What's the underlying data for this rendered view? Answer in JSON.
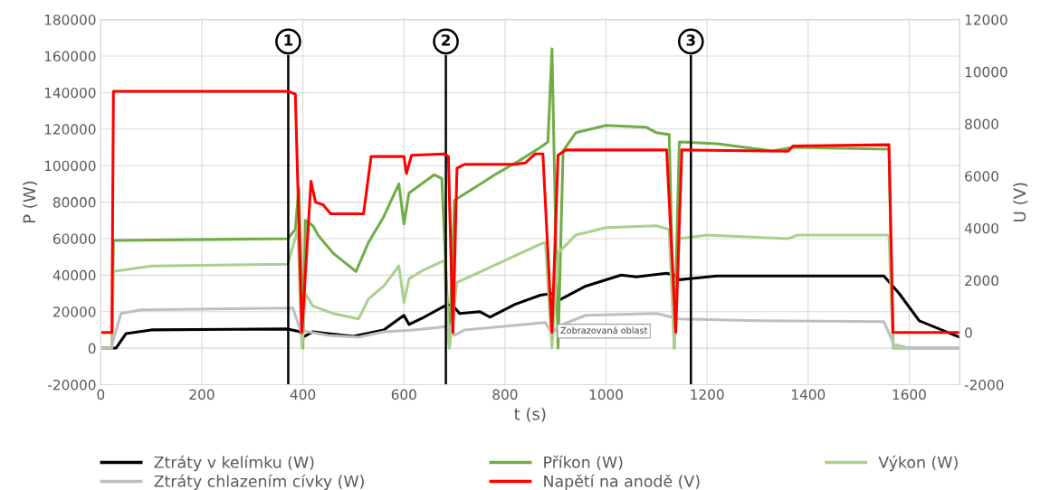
{
  "chart_data": {
    "type": "line",
    "xlabel": "t (s)",
    "ylabel": "P (W)",
    "y2label": "U (V)",
    "xlim": [
      0,
      1700
    ],
    "xticks": [
      0,
      200,
      400,
      600,
      800,
      1000,
      1200,
      1400,
      1600
    ],
    "ylim": [
      -20000,
      180000
    ],
    "yticks": [
      -20000,
      0,
      20000,
      40000,
      60000,
      80000,
      100000,
      120000,
      140000,
      160000,
      180000
    ],
    "y2lim": [
      -2000,
      12000
    ],
    "y2ticks": [
      -2000,
      0,
      2000,
      4000,
      6000,
      8000,
      10000,
      12000
    ],
    "grid": true,
    "legend": "bottom",
    "marker": "none",
    "line_style": "solid",
    "series": [
      {
        "name": "Ztráty v kelímku (W)",
        "color": "#000000",
        "x": [
          0,
          30,
          50,
          100,
          370,
          395,
          400,
          420,
          450,
          500,
          560,
          600,
          610,
          640,
          680,
          695,
          710,
          750,
          770,
          820,
          870,
          895,
          905,
          960,
          1030,
          1060,
          1120,
          1135,
          1145,
          1220,
          1550,
          1580,
          1620,
          1700
        ],
        "values": [
          0,
          0,
          8000,
          10000,
          10500,
          9000,
          6000,
          9000,
          8000,
          6500,
          10000,
          18000,
          13000,
          17000,
          23000,
          24000,
          19000,
          20000,
          17000,
          24000,
          29000,
          30000,
          26000,
          34000,
          40000,
          39000,
          41000,
          40000,
          37500,
          39500,
          39500,
          30000,
          15000,
          6000
        ]
      },
      {
        "name": "Příkon (W)",
        "color": "#70ad47",
        "x": [
          0,
          22,
          25,
          370,
          385,
          392,
          397,
          400,
          405,
          420,
          430,
          460,
          505,
          530,
          560,
          590,
          600,
          610,
          660,
          675,
          690,
          700,
          740,
          780,
          830,
          870,
          885,
          893,
          905,
          915,
          940,
          1000,
          1080,
          1100,
          1125,
          1135,
          1145,
          1220,
          1330,
          1370,
          1560,
          1568,
          1700
        ],
        "values": [
          0,
          0,
          59000,
          60000,
          65000,
          88000,
          40000,
          0,
          70000,
          67000,
          62000,
          52000,
          42000,
          58000,
          72000,
          90000,
          68000,
          85000,
          95000,
          93000,
          0,
          81000,
          88000,
          95000,
          103000,
          110000,
          113000,
          164000,
          0,
          108000,
          118000,
          122000,
          121000,
          118000,
          117000,
          0,
          113000,
          112000,
          108000,
          110000,
          109000,
          0,
          0
        ]
      },
      {
        "name": "Výkon (W)",
        "color": "#a9d18e",
        "x": [
          0,
          22,
          25,
          100,
          370,
          390,
          398,
          405,
          420,
          460,
          510,
          530,
          560,
          590,
          600,
          610,
          640,
          680,
          690,
          705,
          760,
          870,
          880,
          893,
          905,
          940,
          1000,
          1100,
          1125,
          1135,
          1145,
          1200,
          1360,
          1380,
          1560,
          1568,
          1700
        ],
        "values": [
          0,
          0,
          42000,
          45000,
          46000,
          65000,
          0,
          30000,
          23000,
          19000,
          16000,
          27000,
          34000,
          45000,
          25000,
          38000,
          43000,
          48000,
          0,
          36000,
          43000,
          57000,
          58000,
          0,
          52000,
          62000,
          66000,
          67000,
          65000,
          0,
          60000,
          62000,
          60000,
          62000,
          62000,
          0,
          0
        ]
      },
      {
        "name": "Ztráty chlazením cívky (W)",
        "color": "#bfbfbf",
        "x": [
          0,
          20,
          40,
          80,
          380,
          395,
          410,
          450,
          510,
          560,
          620,
          690,
          700,
          720,
          880,
          893,
          905,
          960,
          1100,
          1130,
          1145,
          1300,
          1550,
          1570,
          1600,
          1700
        ],
        "values": [
          0,
          0,
          19000,
          21000,
          22000,
          10000,
          9000,
          7000,
          6000,
          9000,
          10000,
          12000,
          7000,
          10000,
          14000,
          8000,
          12000,
          18000,
          19000,
          17000,
          16000,
          15000,
          14500,
          2000,
          0,
          0
        ]
      },
      {
        "name": "Napětí na anodě (V)",
        "color": "#ff0000",
        "axis": "y2",
        "x": [
          0,
          22,
          25,
          370,
          385,
          398,
          416,
          425,
          440,
          455,
          520,
          535,
          600,
          605,
          615,
          680,
          688,
          697,
          705,
          720,
          820,
          840,
          860,
          875,
          893,
          905,
          920,
          1120,
          1138,
          1150,
          1360,
          1370,
          1560,
          1568,
          1700
        ],
        "values": [
          0,
          0,
          9250,
          9250,
          9150,
          0,
          5800,
          5000,
          4900,
          4550,
          4550,
          6750,
          6750,
          6100,
          6800,
          6850,
          6750,
          0,
          6300,
          6450,
          6450,
          6500,
          6850,
          6850,
          0,
          6800,
          7000,
          7000,
          0,
          7000,
          6950,
          7150,
          7200,
          0,
          0
        ]
      }
    ],
    "ref_lines": [
      {
        "axis": "x",
        "value": 371,
        "color": "#000000"
      },
      {
        "axis": "x",
        "value": 683,
        "color": "#000000"
      },
      {
        "axis": "x",
        "value": 1168,
        "color": "#000000"
      }
    ],
    "annotations": [
      {
        "text": "1",
        "x": 371,
        "y": 168000
      },
      {
        "text": "2",
        "x": 683,
        "y": 168000
      },
      {
        "text": "3",
        "x": 1168,
        "y": 168000
      },
      "Zobrazovaná oblast"
    ]
  }
}
